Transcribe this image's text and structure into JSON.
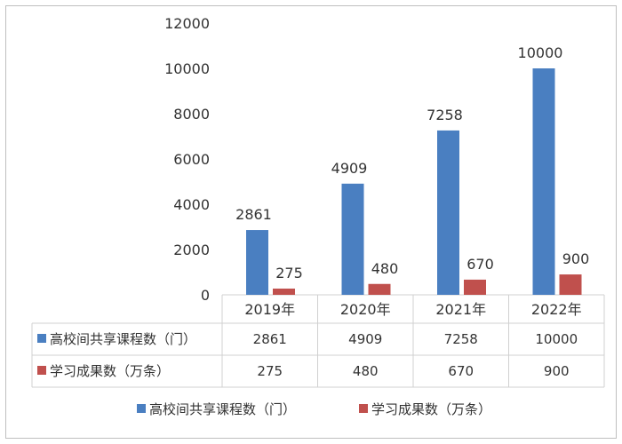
{
  "chart_data": {
    "type": "bar",
    "categories": [
      "2019年",
      "2020年",
      "2021年",
      "2022年"
    ],
    "series": [
      {
        "name": "高校间共享课程数（门）",
        "values": [
          2861,
          4909,
          7258,
          10000
        ],
        "color": "#4a7fc1"
      },
      {
        "name": "学习成果数（万条）",
        "values": [
          275,
          480,
          670,
          900
        ],
        "color": "#c0504d"
      }
    ],
    "ylim": [
      0,
      12000
    ],
    "yticks": [
      0,
      2000,
      4000,
      6000,
      8000,
      10000,
      12000
    ],
    "grid": false,
    "legend": "bottom",
    "data_table": true
  }
}
